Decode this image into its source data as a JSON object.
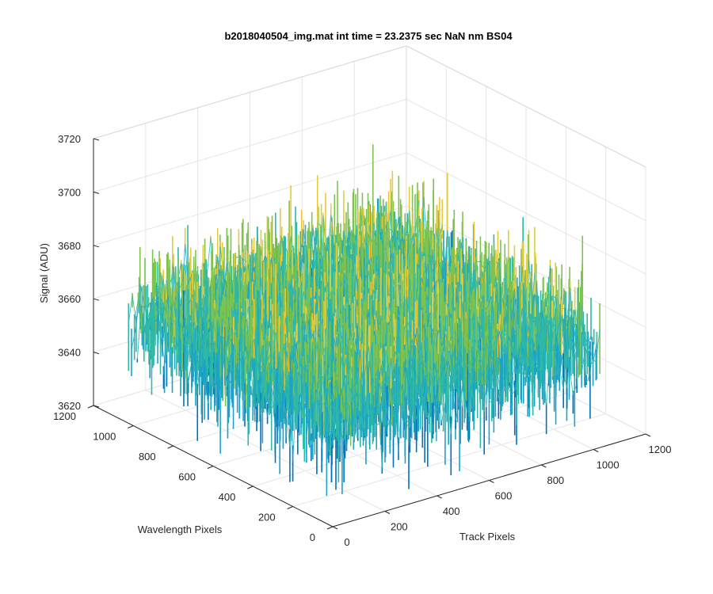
{
  "chart_data": {
    "type": "surface",
    "title": "b2018040504_img.mat int time = 23.2375 sec   NaN nm BS04",
    "xlabel": "Track Pixels",
    "ylabel": "Wavelength Pixels",
    "zlabel": "Signal (ADU)",
    "xlim": [
      0,
      1200
    ],
    "ylim": [
      0,
      1200
    ],
    "zlim": [
      3620,
      3720
    ],
    "x_ticks": [
      "0",
      "200",
      "400",
      "600",
      "800",
      "1000",
      "1200"
    ],
    "y_ticks": [
      "0",
      "200",
      "400",
      "600",
      "800",
      "1000",
      "1200"
    ],
    "z_ticks": [
      "3620",
      "3640",
      "3660",
      "3680",
      "3700",
      "3720"
    ],
    "data_extent": {
      "x": [
        0,
        1024
      ],
      "y": [
        0,
        1024
      ]
    },
    "signal_mean": 3660,
    "signal_range": [
      3630,
      3700
    ],
    "grid": true,
    "colormap": [
      "#0072bd",
      "#1ba3c6",
      "#2eb8a6",
      "#7ec34f",
      "#e8c93b"
    ]
  }
}
